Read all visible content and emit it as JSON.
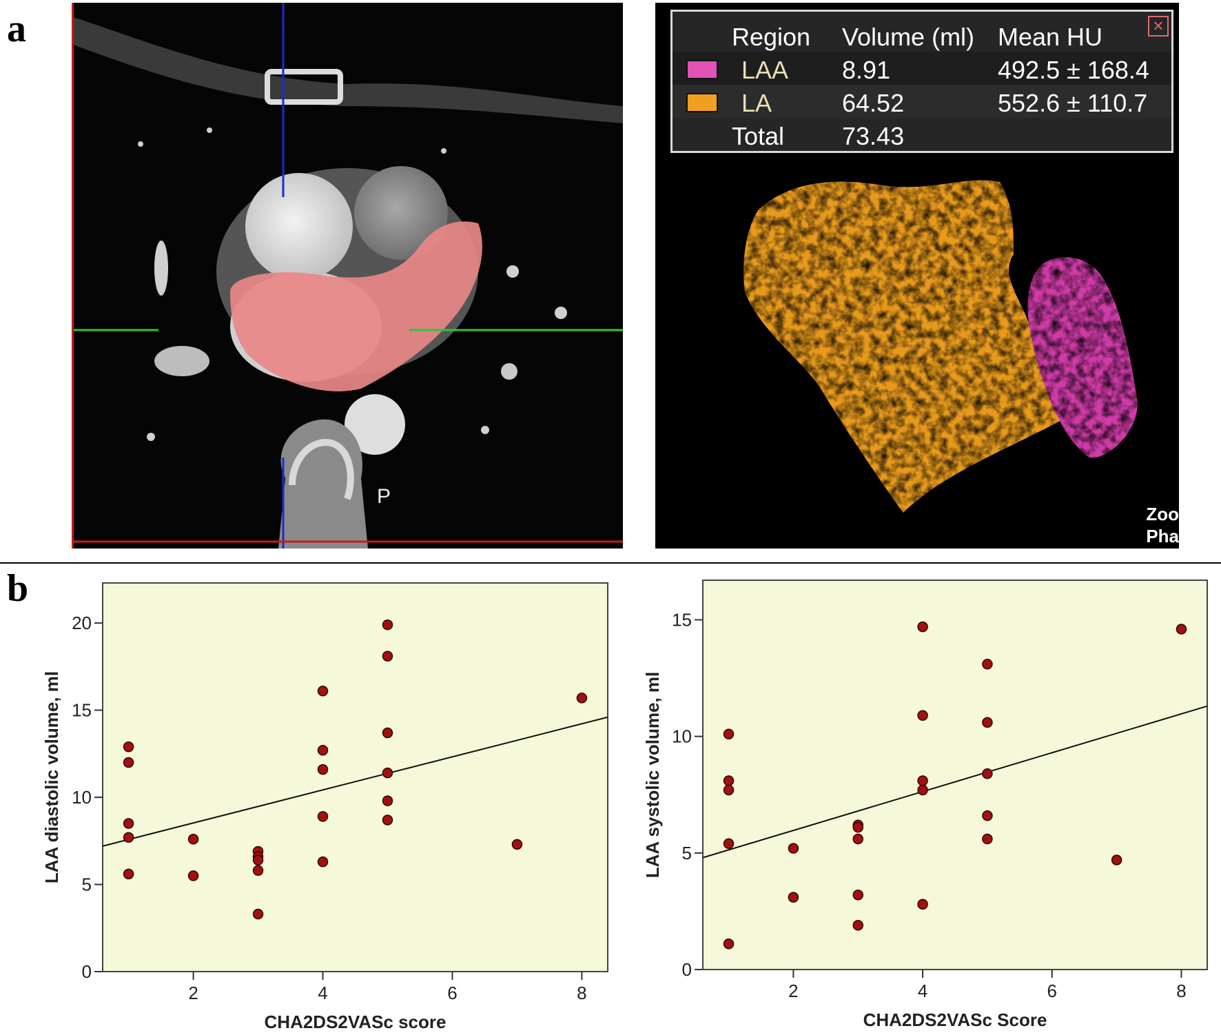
{
  "panel_a": {
    "label": "a",
    "ct_marker": "P",
    "table": {
      "headers": [
        "Region",
        "Volume (ml)",
        "Mean HU"
      ],
      "rows": [
        {
          "region": "LAA",
          "volume": "8.91",
          "mean_hu": "492.5 ± 168.4",
          "color": "#e052b5"
        },
        {
          "region": "LA",
          "volume": "64.52",
          "mean_hu": "552.6 ± 110.7",
          "color": "#f0a020"
        },
        {
          "region": "Total",
          "volume": "73.43",
          "mean_hu": ""
        }
      ]
    },
    "corner_text": [
      "Zoo",
      "Pha"
    ]
  },
  "panel_b": {
    "label": "b"
  },
  "chart_data": [
    {
      "type": "scatter",
      "title": "",
      "xlabel": "CHA2DS2VASc score",
      "ylabel": "LAA diastolic volume, ml",
      "xlim": [
        0.6,
        8.4
      ],
      "ylim": [
        0,
        22.3
      ],
      "xticks": [
        2,
        4,
        6,
        8
      ],
      "yticks": [
        0,
        5,
        10,
        15,
        20
      ],
      "background": "#f5f8d9",
      "point_color": "#a01212",
      "points": [
        [
          1,
          12.9
        ],
        [
          1,
          12.0
        ],
        [
          1,
          8.5
        ],
        [
          1,
          7.7
        ],
        [
          1,
          5.6
        ],
        [
          2,
          7.6
        ],
        [
          2,
          5.5
        ],
        [
          3,
          6.9
        ],
        [
          3,
          6.6
        ],
        [
          3,
          6.4
        ],
        [
          3,
          5.8
        ],
        [
          3,
          3.3
        ],
        [
          4,
          16.1
        ],
        [
          4,
          12.7
        ],
        [
          4,
          11.6
        ],
        [
          4,
          8.9
        ],
        [
          4,
          6.3
        ],
        [
          5,
          19.9
        ],
        [
          5,
          18.1
        ],
        [
          5,
          13.7
        ],
        [
          5,
          11.4
        ],
        [
          5,
          9.8
        ],
        [
          5,
          8.7
        ],
        [
          7,
          7.3
        ],
        [
          8,
          15.7
        ]
      ],
      "fit_line": [
        [
          0.6,
          7.2
        ],
        [
          8.4,
          14.6
        ]
      ]
    },
    {
      "type": "scatter",
      "title": "",
      "xlabel": "CHA2DS2VASc Score",
      "ylabel": "LAA systolic volume, ml",
      "xlim": [
        0.6,
        8.4
      ],
      "ylim": [
        0,
        16.7
      ],
      "xticks": [
        2,
        4,
        6,
        8
      ],
      "yticks": [
        0,
        5,
        10,
        15
      ],
      "background": "#f5f8d9",
      "point_color": "#a01212",
      "points": [
        [
          1,
          10.1
        ],
        [
          1,
          8.1
        ],
        [
          1,
          7.7
        ],
        [
          1,
          5.4
        ],
        [
          1,
          1.1
        ],
        [
          2,
          5.2
        ],
        [
          2,
          3.1
        ],
        [
          3,
          6.2
        ],
        [
          3,
          6.1
        ],
        [
          3,
          5.6
        ],
        [
          3,
          3.2
        ],
        [
          3,
          1.9
        ],
        [
          4,
          14.7
        ],
        [
          4,
          10.9
        ],
        [
          4,
          8.1
        ],
        [
          4,
          7.7
        ],
        [
          4,
          2.8
        ],
        [
          5,
          13.1
        ],
        [
          5,
          10.6
        ],
        [
          5,
          8.4
        ],
        [
          5,
          6.6
        ],
        [
          5,
          5.6
        ],
        [
          7,
          4.7
        ],
        [
          8,
          14.6
        ]
      ],
      "fit_line": [
        [
          0.6,
          4.8
        ],
        [
          8.4,
          11.3
        ]
      ]
    }
  ]
}
